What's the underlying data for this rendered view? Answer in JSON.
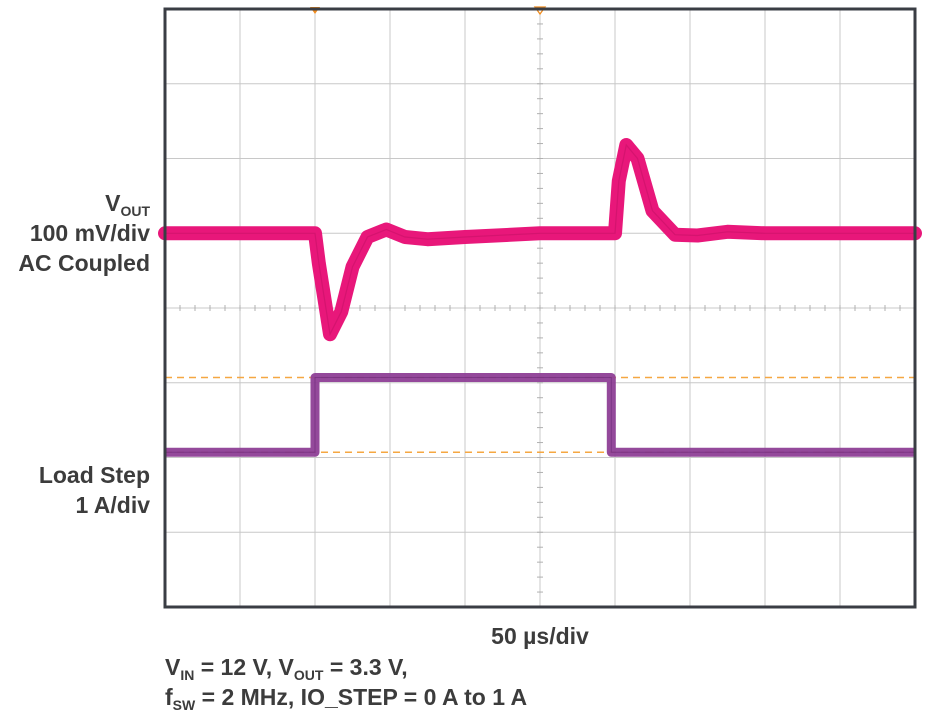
{
  "chart_data": {
    "type": "line",
    "time_per_div": "50 µs/div",
    "divisions": {
      "x": 10,
      "y": 8
    },
    "channels": [
      {
        "name_main": "V",
        "name_sub": "OUT",
        "scale": "100 mV/div",
        "coupling": "AC Coupled",
        "color": "#e8177a",
        "ground_offset_div": 1.0,
        "x_div": [
          0,
          2.0,
          2.05,
          2.2,
          2.35,
          2.5,
          2.7,
          2.95,
          3.2,
          3.5,
          4.0,
          5.0,
          6.0,
          6.05,
          6.15,
          6.3,
          6.5,
          6.8,
          7.1,
          7.5,
          8.0,
          9.0,
          10.0
        ],
        "y_mV": [
          0,
          0,
          -40,
          -135,
          -105,
          -45,
          -5,
          5,
          -5,
          -8,
          -5,
          0,
          0,
          70,
          118,
          100,
          30,
          -2,
          -3,
          2,
          0,
          0,
          0
        ]
      },
      {
        "name_main": "Load Step",
        "scale": "1 A/div",
        "color": "#8e3f96",
        "ground_offset_div": -1.93,
        "x_div": [
          0,
          2.0,
          2.0,
          5.95,
          5.95,
          10.0
        ],
        "y_A": [
          0,
          0,
          1,
          1,
          0,
          0
        ]
      }
    ],
    "cursor_levels_A": [
      0,
      1
    ],
    "cursor_color": "#f5a742"
  },
  "labels": {
    "ch1_main": "V",
    "ch1_sub": "OUT",
    "ch1_scale": "100 mV/div",
    "ch1_coupling": "AC Coupled",
    "ch2_name": "Load Step",
    "ch2_scale": "1 A/div",
    "timebase": "50 µs/div",
    "cond_vin_main": "V",
    "cond_vin_sub": "IN",
    "cond_vin_val": " = 12 V, ",
    "cond_vout_main": "V",
    "cond_vout_sub": "OUT",
    "cond_vout_val": " = 3.3 V,",
    "cond_fsw_main": "f",
    "cond_fsw_sub": "SW",
    "cond_fsw_val": " = 2 MHz, IO_STEP = 0 A to 1 A"
  },
  "colors": {
    "frame": "#3a3d44",
    "grid": "#c8c8c8",
    "trigger_marker": "#f08c1e",
    "text": "#3c3c3c"
  }
}
